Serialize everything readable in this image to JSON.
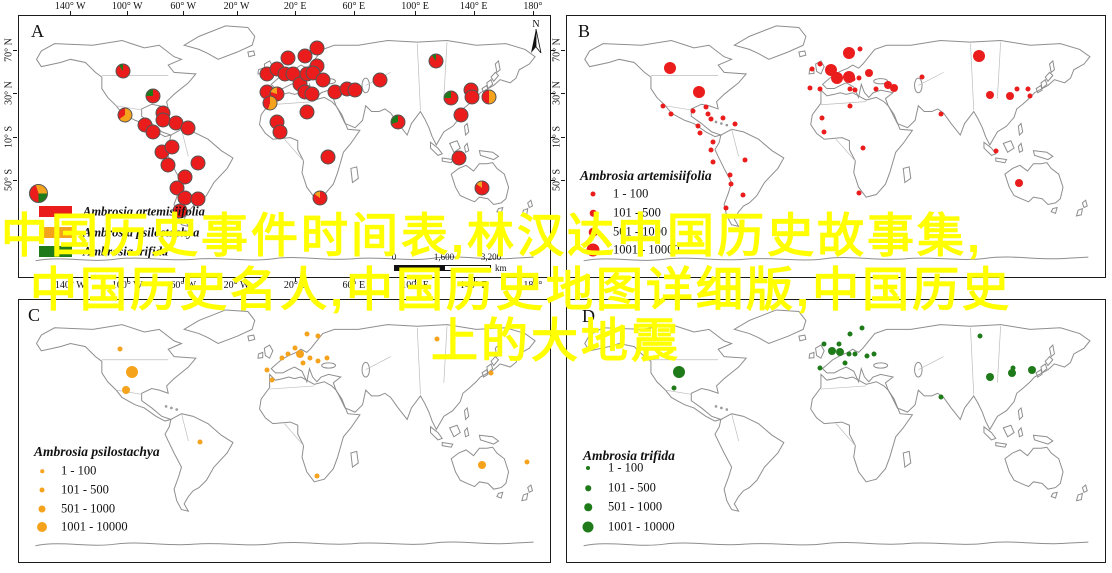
{
  "watermark": {
    "color": "#ffff00",
    "lines": [
      "中国历史事件时间表,林汉达中国历史故事集,",
      "中国历史名人,中国历史地图详细版,中国历史",
      "上的大地震"
    ]
  },
  "colors": {
    "red": "#ea1c1c",
    "orange": "#f5a31d",
    "green": "#1f7a1a",
    "map_outline": "#8e8e8e",
    "panel_border": "#1b1b1b"
  },
  "north": "N",
  "scalebar": {
    "ticks": [
      "0",
      "1,600",
      "3,200"
    ],
    "unit": "km"
  },
  "axes": {
    "top_labels": [
      "140° W",
      "100° W",
      "60° W",
      "20° W",
      "20° E",
      "60° E",
      "100° E",
      "140° E",
      "180°"
    ],
    "top_pcts": [
      9.8,
      20.5,
      31.0,
      41.0,
      52.0,
      63.0,
      74.5,
      85.5,
      96.6
    ],
    "side_labels": [
      "70° N",
      "30° N",
      "10° S",
      "50° S"
    ],
    "side_pcts": [
      13.3,
      29.7,
      46.4,
      62.7
    ]
  },
  "size_legend": {
    "classes": [
      "1 - 100",
      "101 - 500",
      "501 - 1000",
      "1001 - 10000"
    ]
  },
  "panels": [
    {
      "letter": "A",
      "type": "pie",
      "species_legend": [
        {
          "label": "Ambrosia artemisiifolia",
          "color": "red"
        },
        {
          "label": "Ambrosia psilostachya",
          "color": "orange"
        },
        {
          "label": "Ambrosia trifida",
          "color": "green"
        }
      ],
      "points": [
        {
          "x": 19.5,
          "y": 20.9,
          "mix": {
            "red": 0.9,
            "green": 0.1
          }
        },
        {
          "x": 25.3,
          "y": 30.8,
          "mix": {
            "red": 0.75,
            "green": 0.25
          }
        },
        {
          "x": 19.9,
          "y": 38.0,
          "mix": {
            "orange": 0.65,
            "red": 0.35
          }
        },
        {
          "x": 27.2,
          "y": 37.3,
          "mix": {
            "red": 1
          }
        },
        {
          "x": 27.2,
          "y": 39.9,
          "mix": {
            "red": 1
          }
        },
        {
          "x": 29.5,
          "y": 41.1,
          "mix": {
            "red": 1
          }
        },
        {
          "x": 31.9,
          "y": 43.0,
          "mix": {
            "red": 1
          }
        },
        {
          "x": 23.8,
          "y": 41.8,
          "mix": {
            "red": 1
          }
        },
        {
          "x": 25.3,
          "y": 44.5,
          "mix": {
            "red": 1
          }
        },
        {
          "x": 27.0,
          "y": 52.1,
          "mix": {
            "red": 1
          }
        },
        {
          "x": 28.9,
          "y": 50.2,
          "mix": {
            "red": 1
          }
        },
        {
          "x": 28.0,
          "y": 57.0,
          "mix": {
            "red": 1
          }
        },
        {
          "x": 31.3,
          "y": 61.6,
          "mix": {
            "red": 1
          }
        },
        {
          "x": 33.8,
          "y": 56.3,
          "mix": {
            "red": 1
          }
        },
        {
          "x": 29.8,
          "y": 65.8,
          "mix": {
            "red": 1
          }
        },
        {
          "x": 31.3,
          "y": 69.6,
          "mix": {
            "red": 1
          }
        },
        {
          "x": 33.8,
          "y": 70.3,
          "mix": {
            "red": 1
          }
        },
        {
          "x": 30.4,
          "y": 74.9,
          "mix": {
            "red": 1
          }
        },
        {
          "x": 50.7,
          "y": 16.0,
          "mix": {
            "red": 1
          }
        },
        {
          "x": 56.1,
          "y": 12.2,
          "mix": {
            "red": 1
          }
        },
        {
          "x": 53.8,
          "y": 15.2,
          "mix": {
            "red": 1
          }
        },
        {
          "x": 56.1,
          "y": 19.0,
          "mix": {
            "red": 1
          }
        },
        {
          "x": 46.7,
          "y": 22.1,
          "mix": {
            "red": 1
          }
        },
        {
          "x": 48.6,
          "y": 20.2,
          "mix": {
            "red": 1
          }
        },
        {
          "x": 50.1,
          "y": 22.1,
          "mix": {
            "red": 1
          }
        },
        {
          "x": 51.6,
          "y": 22.1,
          "mix": {
            "red": 1
          }
        },
        {
          "x": 52.9,
          "y": 25.9,
          "mix": {
            "red": 1
          }
        },
        {
          "x": 54.2,
          "y": 22.1,
          "mix": {
            "red": 1
          }
        },
        {
          "x": 55.3,
          "y": 21.7,
          "mix": {
            "red": 1
          }
        },
        {
          "x": 57.2,
          "y": 24.7,
          "mix": {
            "red": 1
          }
        },
        {
          "x": 53.8,
          "y": 29.3,
          "mix": {
            "red": 1
          }
        },
        {
          "x": 55.2,
          "y": 29.7,
          "mix": {
            "red": 1
          }
        },
        {
          "x": 46.7,
          "y": 29.3,
          "mix": {
            "red": 1
          }
        },
        {
          "x": 48.6,
          "y": 29.7,
          "mix": {
            "red": 0.8,
            "orange": 0.2
          }
        },
        {
          "x": 47.3,
          "y": 33.5,
          "mix": {
            "orange": 0.55,
            "red": 0.45
          }
        },
        {
          "x": 54.2,
          "y": 36.9,
          "mix": {
            "red": 1
          }
        },
        {
          "x": 59.5,
          "y": 29.3,
          "mix": {
            "red": 1
          }
        },
        {
          "x": 61.7,
          "y": 27.8,
          "mix": {
            "red": 1
          }
        },
        {
          "x": 63.2,
          "y": 28.5,
          "mix": {
            "red": 1
          }
        },
        {
          "x": 67.9,
          "y": 24.7,
          "mix": {
            "red": 1
          }
        },
        {
          "x": 48.6,
          "y": 40.7,
          "mix": {
            "red": 1
          }
        },
        {
          "x": 49.2,
          "y": 44.5,
          "mix": {
            "red": 1
          }
        },
        {
          "x": 71.3,
          "y": 40.7,
          "mix": {
            "red": 0.7,
            "green": 0.3
          }
        },
        {
          "x": 58.2,
          "y": 54.0,
          "mix": {
            "red": 1
          }
        },
        {
          "x": 56.7,
          "y": 69.6,
          "mix": {
            "red": 0.85,
            "orange": 0.15
          }
        },
        {
          "x": 78.6,
          "y": 17.1,
          "mix": {
            "red": 0.9,
            "green": 0.1
          }
        },
        {
          "x": 81.4,
          "y": 31.6,
          "mix": {
            "red": 0.75,
            "green": 0.25
          }
        },
        {
          "x": 85.2,
          "y": 28.5,
          "mix": {
            "red": 1
          }
        },
        {
          "x": 85.4,
          "y": 31.2,
          "mix": {
            "red": 1
          }
        },
        {
          "x": 88.6,
          "y": 31.2,
          "mix": {
            "orange": 0.5,
            "red": 0.5
          }
        },
        {
          "x": 83.3,
          "y": 38.0,
          "mix": {
            "red": 1
          }
        },
        {
          "x": 82.9,
          "y": 54.4,
          "mix": {
            "red": 1
          }
        },
        {
          "x": 87.1,
          "y": 65.8,
          "mix": {
            "red": 0.85,
            "orange": 0.15
          }
        }
      ]
    },
    {
      "letter": "B",
      "type": "sized",
      "legend_title": "Ambrosia artemisiifolia",
      "color": "red",
      "points": [
        {
          "x": 19.1,
          "y": 19.8,
          "s": 3
        },
        {
          "x": 24.6,
          "y": 29.3,
          "s": 3
        },
        {
          "x": 17.8,
          "y": 34.6,
          "s": 1
        },
        {
          "x": 19.3,
          "y": 37.6,
          "s": 1
        },
        {
          "x": 23.5,
          "y": 36.5,
          "s": 1
        },
        {
          "x": 25.9,
          "y": 35.0,
          "s": 1
        },
        {
          "x": 26.3,
          "y": 37.6,
          "s": 1
        },
        {
          "x": 26.7,
          "y": 39.5,
          "s": 1
        },
        {
          "x": 29.0,
          "y": 39.2,
          "s": 1
        },
        {
          "x": 31.3,
          "y": 41.4,
          "s": 1
        },
        {
          "x": 24.4,
          "y": 42.2,
          "s": 1
        },
        {
          "x": 24.8,
          "y": 44.9,
          "s": 1
        },
        {
          "x": 27.2,
          "y": 48.3,
          "s": 1
        },
        {
          "x": 26.7,
          "y": 51.3,
          "s": 1
        },
        {
          "x": 27.2,
          "y": 55.9,
          "s": 1
        },
        {
          "x": 33.1,
          "y": 55.1,
          "s": 1
        },
        {
          "x": 30.3,
          "y": 60.8,
          "s": 1
        },
        {
          "x": 30.5,
          "y": 64.3,
          "s": 1
        },
        {
          "x": 32.7,
          "y": 68.4,
          "s": 1
        },
        {
          "x": 29.6,
          "y": 73.4,
          "s": 1
        },
        {
          "x": 52.4,
          "y": 14.1,
          "s": 3
        },
        {
          "x": 54.4,
          "y": 12.5,
          "s": 1
        },
        {
          "x": 45.6,
          "y": 20.2,
          "s": 1
        },
        {
          "x": 47.1,
          "y": 18.3,
          "s": 1
        },
        {
          "x": 49.1,
          "y": 20.5,
          "s": 3
        },
        {
          "x": 50.2,
          "y": 23.6,
          "s": 3
        },
        {
          "x": 52.4,
          "y": 23.2,
          "s": 3
        },
        {
          "x": 53.1,
          "y": 24.0,
          "s": 1
        },
        {
          "x": 54.2,
          "y": 23.6,
          "s": 1
        },
        {
          "x": 56.1,
          "y": 21.7,
          "s": 2
        },
        {
          "x": 57.5,
          "y": 27.8,
          "s": 1
        },
        {
          "x": 59.7,
          "y": 26.6,
          "s": 2
        },
        {
          "x": 60.7,
          "y": 27.4,
          "s": 2
        },
        {
          "x": 45.2,
          "y": 27.4,
          "s": 1
        },
        {
          "x": 47.1,
          "y": 27.8,
          "s": 1
        },
        {
          "x": 52.6,
          "y": 27.8,
          "s": 1
        },
        {
          "x": 53.5,
          "y": 28.5,
          "s": 1
        },
        {
          "x": 52.6,
          "y": 34.6,
          "s": 1
        },
        {
          "x": 47.4,
          "y": 39.2,
          "s": 1
        },
        {
          "x": 47.8,
          "y": 44.5,
          "s": 1
        },
        {
          "x": 55.1,
          "y": 50.6,
          "s": 1
        },
        {
          "x": 54.2,
          "y": 67.7,
          "s": 1
        },
        {
          "x": 66.0,
          "y": 23.2,
          "s": 1
        },
        {
          "x": 69.5,
          "y": 37.6,
          "s": 1
        },
        {
          "x": 76.5,
          "y": 15.2,
          "s": 3
        },
        {
          "x": 78.7,
          "y": 30.4,
          "s": 2
        },
        {
          "x": 82.4,
          "y": 30.8,
          "s": 2
        },
        {
          "x": 83.6,
          "y": 27.8,
          "s": 1
        },
        {
          "x": 85.7,
          "y": 27.8,
          "s": 1
        },
        {
          "x": 86.0,
          "y": 30.8,
          "s": 1
        },
        {
          "x": 79.8,
          "y": 51.7,
          "s": 1
        },
        {
          "x": 84.0,
          "y": 63.9,
          "s": 2
        }
      ]
    },
    {
      "letter": "C",
      "type": "sized",
      "legend_title": "Ambrosia psilostachya",
      "color": "orange",
      "points": [
        {
          "x": 19.1,
          "y": 18.6,
          "s": 1
        },
        {
          "x": 21.2,
          "y": 27.3,
          "s": 3
        },
        {
          "x": 20.1,
          "y": 34.5,
          "s": 2
        },
        {
          "x": 34.1,
          "y": 54.2,
          "s": 1
        },
        {
          "x": 56.1,
          "y": 67.0,
          "s": 1
        },
        {
          "x": 54.2,
          "y": 12.9,
          "s": 1
        },
        {
          "x": 56.3,
          "y": 13.6,
          "s": 1
        },
        {
          "x": 52.0,
          "y": 18.2,
          "s": 1
        },
        {
          "x": 50.7,
          "y": 20.5,
          "s": 1
        },
        {
          "x": 49.5,
          "y": 22.3,
          "s": 1
        },
        {
          "x": 52.9,
          "y": 20.5,
          "s": 2
        },
        {
          "x": 54.8,
          "y": 22.0,
          "s": 1
        },
        {
          "x": 56.3,
          "y": 23.1,
          "s": 1
        },
        {
          "x": 53.5,
          "y": 23.9,
          "s": 1
        },
        {
          "x": 58.0,
          "y": 22.3,
          "s": 1
        },
        {
          "x": 46.7,
          "y": 26.9,
          "s": 1
        },
        {
          "x": 47.7,
          "y": 30.7,
          "s": 1
        },
        {
          "x": 78.8,
          "y": 14.8,
          "s": 1
        },
        {
          "x": 88.9,
          "y": 27.7,
          "s": 1
        },
        {
          "x": 87.1,
          "y": 62.9,
          "s": 2
        },
        {
          "x": 95.7,
          "y": 61.7,
          "s": 1
        }
      ]
    },
    {
      "letter": "D",
      "type": "sized",
      "legend_title": "Ambrosia trifida",
      "color": "green",
      "points": [
        {
          "x": 20.8,
          "y": 27.3,
          "s": 3
        },
        {
          "x": 19.9,
          "y": 33.7,
          "s": 1
        },
        {
          "x": 54.8,
          "y": 10.6,
          "s": 1
        },
        {
          "x": 52.6,
          "y": 12.9,
          "s": 1
        },
        {
          "x": 47.8,
          "y": 16.7,
          "s": 1
        },
        {
          "x": 50.6,
          "y": 16.7,
          "s": 1
        },
        {
          "x": 49.3,
          "y": 19.3,
          "s": 2
        },
        {
          "x": 50.7,
          "y": 19.7,
          "s": 2
        },
        {
          "x": 52.4,
          "y": 20.5,
          "s": 1
        },
        {
          "x": 53.5,
          "y": 20.8,
          "s": 1
        },
        {
          "x": 55.7,
          "y": 21.2,
          "s": 1
        },
        {
          "x": 57.0,
          "y": 20.5,
          "s": 1
        },
        {
          "x": 47.1,
          "y": 26.1,
          "s": 1
        },
        {
          "x": 51.7,
          "y": 24.2,
          "s": 1
        },
        {
          "x": 76.7,
          "y": 13.6,
          "s": 1
        },
        {
          "x": 78.7,
          "y": 29.5,
          "s": 2
        },
        {
          "x": 82.7,
          "y": 27.7,
          "s": 2
        },
        {
          "x": 82.9,
          "y": 25.8,
          "s": 1
        },
        {
          "x": 86.4,
          "y": 26.9,
          "s": 2
        },
        {
          "x": 69.5,
          "y": 37.1,
          "s": 1
        }
      ]
    }
  ]
}
